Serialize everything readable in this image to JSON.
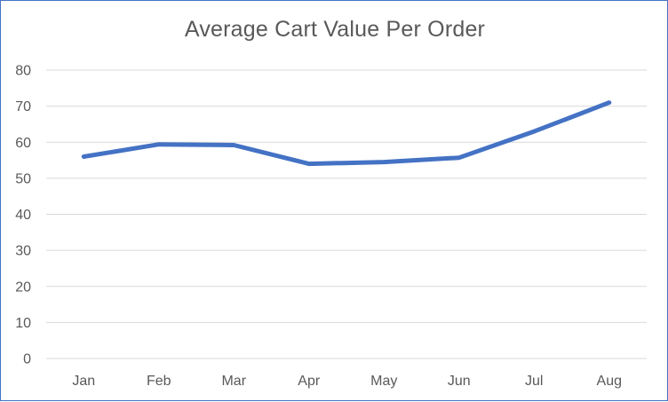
{
  "chart_data": {
    "type": "line",
    "title": "Average Cart Value Per Order",
    "xlabel": "",
    "ylabel": "",
    "categories": [
      "Jan",
      "Feb",
      "Mar",
      "Apr",
      "May",
      "Jun",
      "Jul",
      "Aug"
    ],
    "series": [
      {
        "values": [
          56,
          59.4,
          59.2,
          54,
          54.5,
          55.7,
          63,
          71
        ],
        "color": "#4472c4"
      }
    ],
    "ylim": [
      0,
      80
    ],
    "yticks": [
      0,
      10,
      20,
      30,
      40,
      50,
      60,
      70,
      80
    ],
    "grid": true,
    "legend": "none"
  }
}
